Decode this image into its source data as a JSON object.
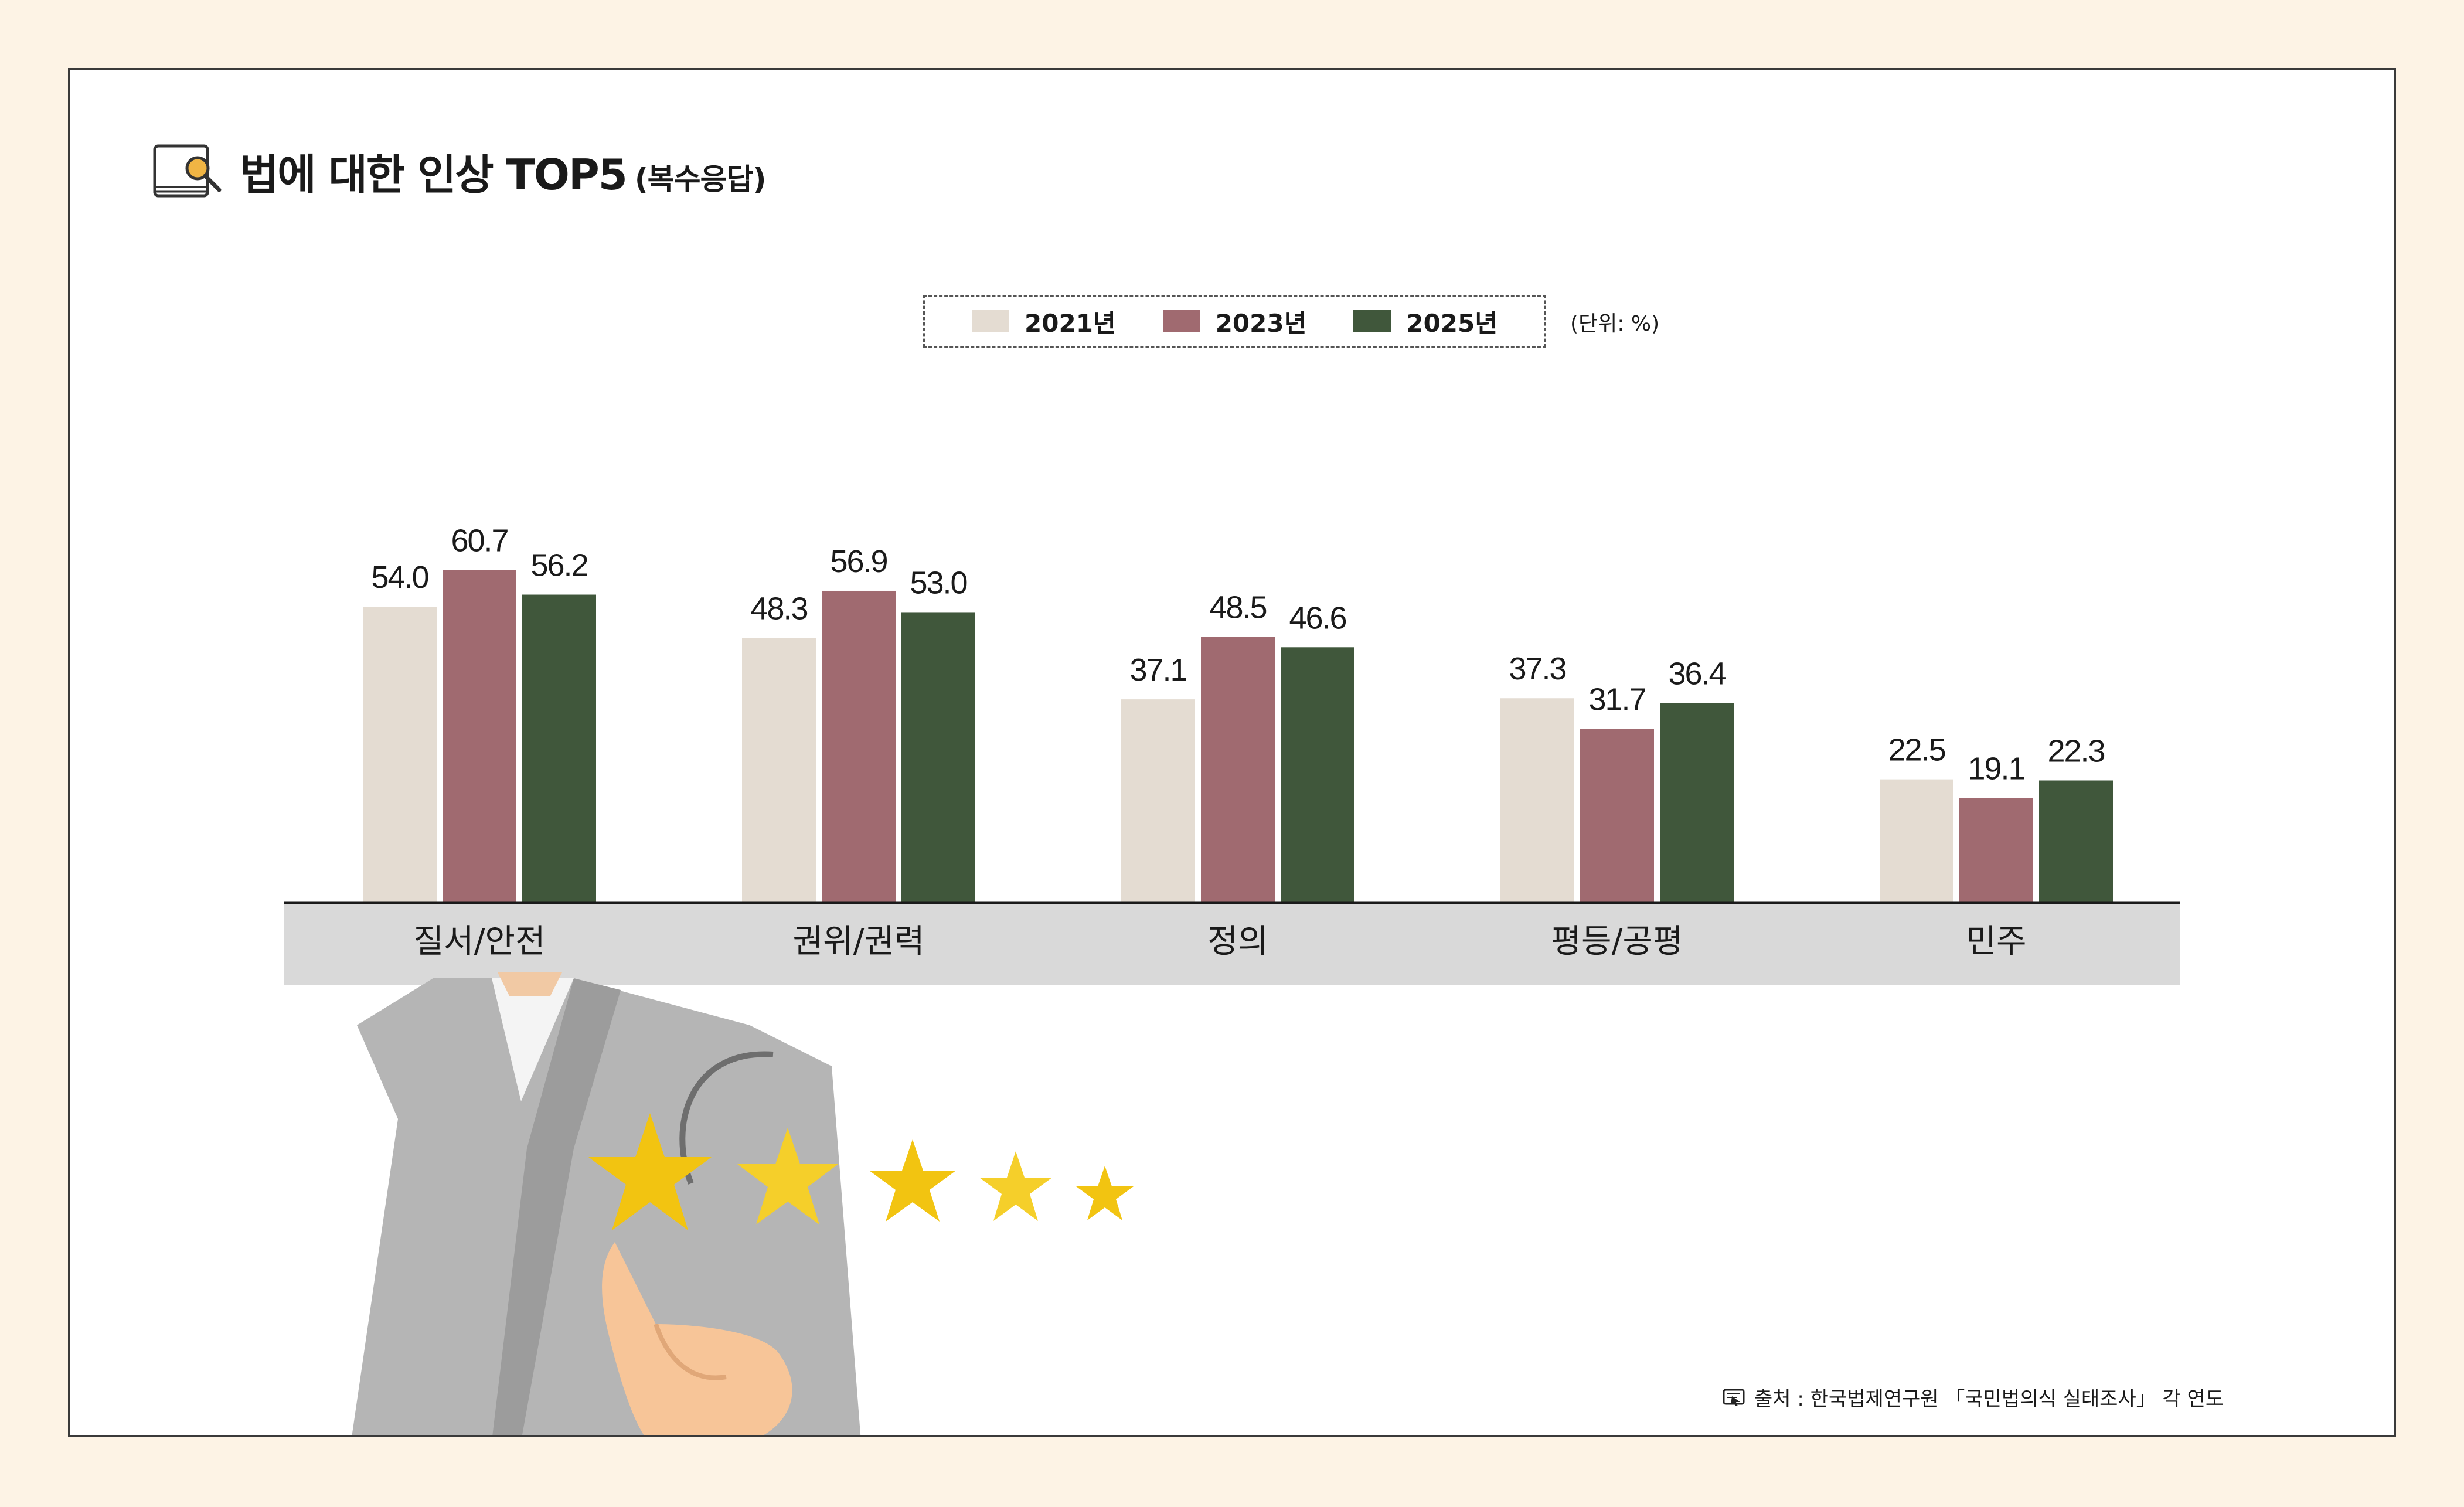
{
  "title": {
    "main": "법에 대한 인상 TOP5",
    "sub": "(복수응답)",
    "icon": "book-search-icon"
  },
  "unit": "(단위: %)",
  "source": "출처 : 한국법제연구원 「국민법의식 실태조사」 각 연도",
  "colors": {
    "y2021": "#e4dcd2",
    "y2023": "#a06a70",
    "y2025": "#40573b",
    "band": "#d9d9d9",
    "background": "#fdf3e5"
  },
  "legend": [
    {
      "label": "2021년",
      "color": "#e4dcd2"
    },
    {
      "label": "2023년",
      "color": "#a06a70"
    },
    {
      "label": "2025년",
      "color": "#40573b"
    }
  ],
  "chart_data": {
    "type": "bar",
    "title": "법에 대한 인상 TOP5 (복수응답)",
    "categories": [
      "질서/안전",
      "권위/권력",
      "정의",
      "평등/공평",
      "민주"
    ],
    "series": [
      {
        "name": "2021년",
        "values": [
          54.0,
          48.3,
          37.1,
          37.3,
          22.5
        ]
      },
      {
        "name": "2023년",
        "values": [
          60.7,
          56.9,
          48.5,
          31.7,
          19.1
        ]
      },
      {
        "name": "2025년",
        "values": [
          56.2,
          53.0,
          46.6,
          36.4,
          22.3
        ]
      }
    ],
    "value_labels": [
      [
        "54.0",
        "48.3",
        "37.1",
        "37.3",
        "22.5"
      ],
      [
        "60.7",
        "56.9",
        "48.5",
        "31.7",
        "19.1"
      ],
      [
        "56.2",
        "53.0",
        "46.6",
        "36.4",
        "22.3"
      ]
    ],
    "xlabel": "",
    "ylabel": "",
    "ylim": [
      0,
      70
    ],
    "grid": false,
    "legend_position": "top-center"
  }
}
